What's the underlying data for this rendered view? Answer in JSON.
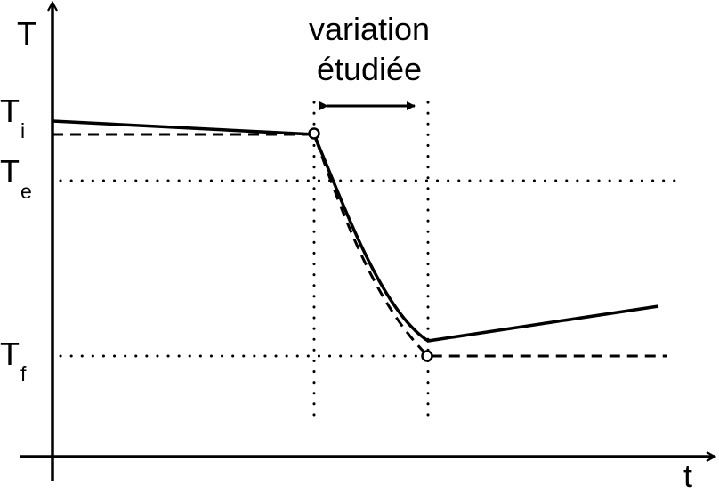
{
  "axes": {
    "y_label": "T",
    "x_label": "t"
  },
  "annotation": {
    "line1": "variation",
    "line2": "étudiée"
  },
  "levels": {
    "Ti": {
      "main": "T",
      "sub": "i"
    },
    "Te": {
      "main": "T",
      "sub": "e"
    },
    "Tf": {
      "main": "T",
      "sub": "f"
    }
  },
  "colors": {
    "ink": "#000000",
    "background": "#ffffff"
  }
}
